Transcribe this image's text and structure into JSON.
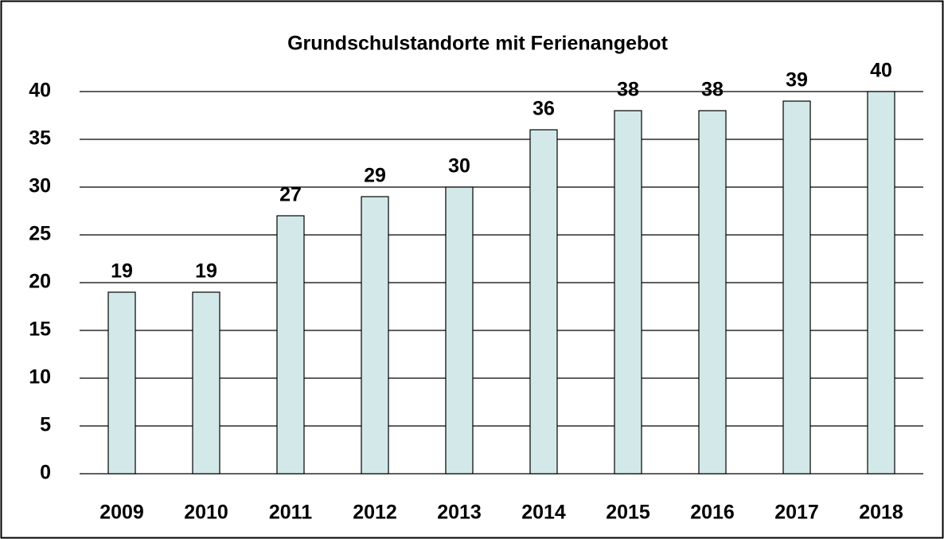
{
  "chart_data": {
    "type": "bar",
    "title": "Grundschulstandorte mit Ferienangebot",
    "categories": [
      "2009",
      "2010",
      "2011",
      "2012",
      "2013",
      "2014",
      "2015",
      "2016",
      "2017",
      "2018"
    ],
    "values": [
      19,
      19,
      27,
      29,
      30,
      36,
      38,
      38,
      39,
      40
    ],
    "color": "#d3e9e9",
    "ylim": [
      0,
      40
    ],
    "yticks": [
      0,
      5,
      10,
      15,
      20,
      25,
      30,
      35,
      40
    ],
    "grid": true
  }
}
